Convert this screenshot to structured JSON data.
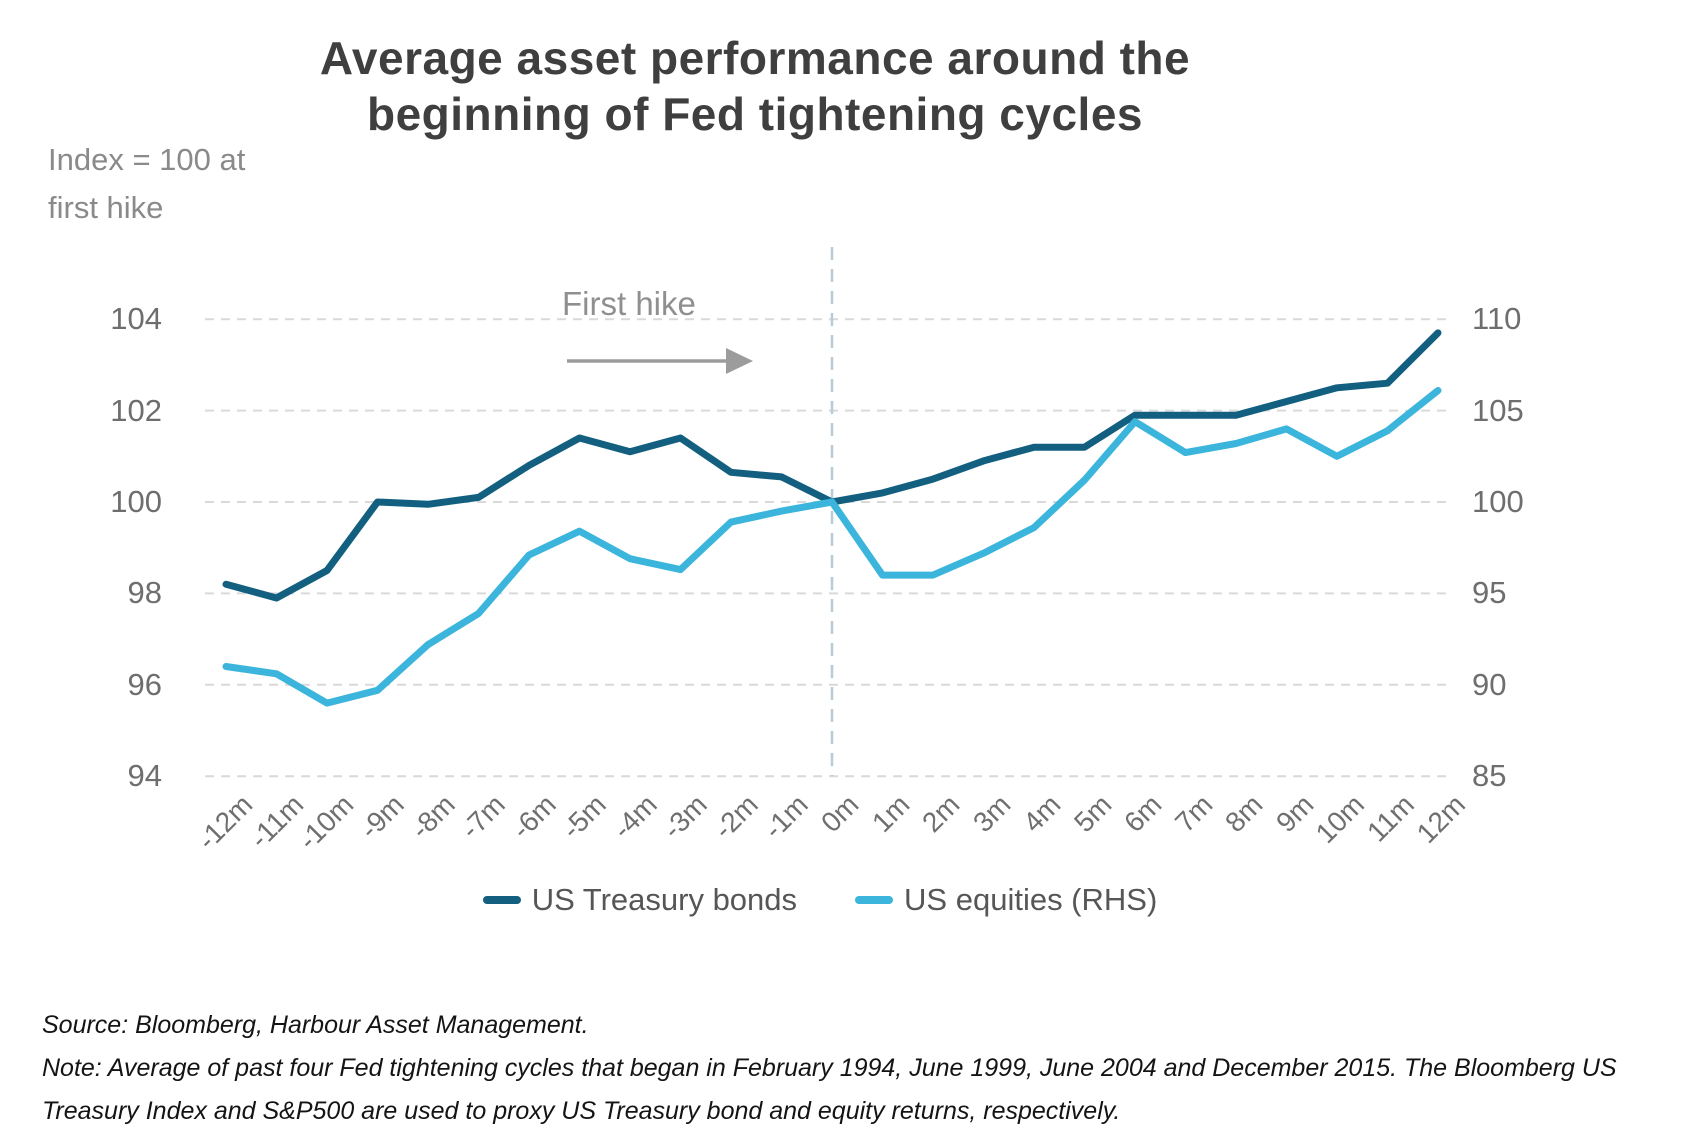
{
  "title": {
    "line1": "Average asset performance around the",
    "line2": "beginning of Fed tightening cycles"
  },
  "axis_note": "Index = 100 at first hike",
  "annotations": {
    "first_hike": "First hike"
  },
  "legend": [
    {
      "label": "US Treasury bonds",
      "color": "#125f80"
    },
    {
      "label": "US equities (RHS)",
      "color": "#3bb5dc"
    }
  ],
  "notes": {
    "source": "Source: Bloomberg, Harbour Asset Management.",
    "note": "Note: Average of past four Fed tightening cycles that began in February 1994, June 1999, June 2004 and December 2015.  The Bloomberg US Treasury Index and S&P500 are used to proxy US Treasury bond and equity returns, respectively."
  },
  "chart_data": {
    "type": "line",
    "title": "Average asset performance around the beginning of Fed tightening cycles",
    "categories": [
      "-12m",
      "-11m",
      "-10m",
      "-9m",
      "-8m",
      "-7m",
      "-6m",
      "-5m",
      "-4m",
      "-3m",
      "-2m",
      "-1m",
      "0m",
      "1m",
      "2m",
      "3m",
      "4m",
      "5m",
      "6m",
      "7m",
      "8m",
      "9m",
      "10m",
      "11m",
      "12m"
    ],
    "series": [
      {
        "name": "US Treasury bonds",
        "axis": "left",
        "color": "#125f80",
        "values": [
          98.2,
          97.9,
          98.5,
          100.0,
          99.95,
          100.1,
          100.8,
          101.4,
          101.1,
          101.4,
          100.65,
          100.55,
          100.0,
          100.2,
          100.5,
          100.9,
          101.2,
          101.2,
          101.9,
          101.9,
          101.9,
          102.2,
          102.5,
          102.6,
          103.7
        ]
      },
      {
        "name": "US equities (RHS)",
        "axis": "right",
        "color": "#3bb5dc",
        "values": [
          91.0,
          90.6,
          89.0,
          89.7,
          92.2,
          93.9,
          97.1,
          98.4,
          96.9,
          96.3,
          98.9,
          99.5,
          100.0,
          96.0,
          96.0,
          97.2,
          98.6,
          101.2,
          104.4,
          102.7,
          103.2,
          104.0,
          102.5,
          103.9,
          106.1
        ]
      }
    ],
    "left_axis": {
      "ticks": [
        104,
        102,
        100,
        98,
        96,
        94
      ],
      "range": [
        94,
        104
      ]
    },
    "right_axis": {
      "ticks": [
        110,
        105,
        100,
        95,
        90,
        85
      ],
      "range": [
        85,
        110
      ]
    },
    "x_axis": {
      "first_hike_at": "0m"
    },
    "grid": "horizontal-dashed",
    "legend_position": "bottom"
  }
}
